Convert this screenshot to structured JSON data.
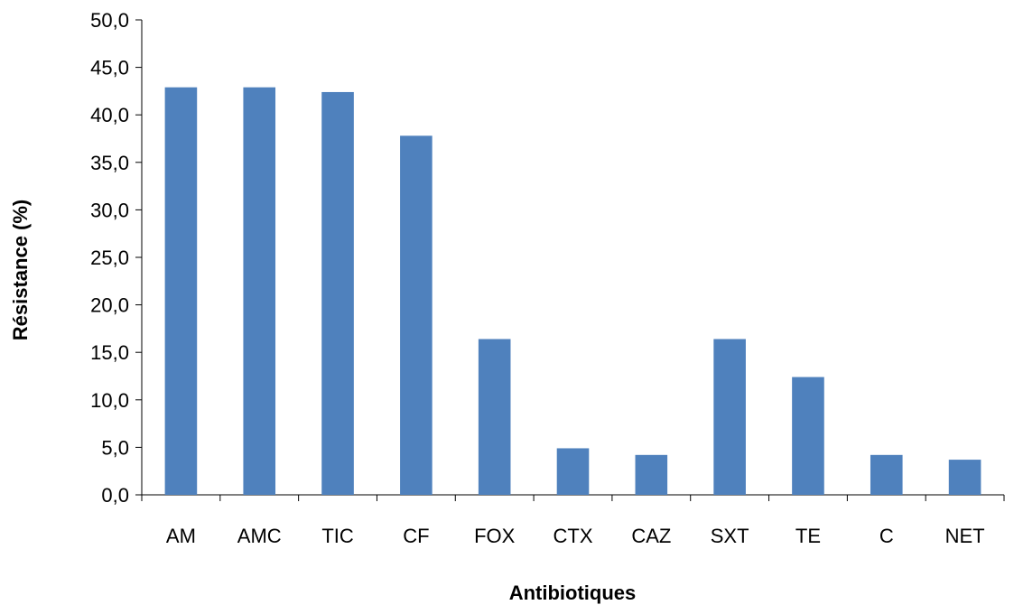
{
  "chart_data": {
    "type": "bar",
    "title": "",
    "xlabel": "Antibiotiques",
    "ylabel": "Résistance (%)",
    "categories": [
      "AM",
      "AMC",
      "TIC",
      "CF",
      "FOX",
      "CTX",
      "CAZ",
      "SXT",
      "TE",
      "C",
      "NET"
    ],
    "values": [
      42.9,
      42.9,
      42.4,
      37.8,
      16.4,
      4.9,
      4.2,
      16.4,
      12.4,
      4.2,
      3.7
    ],
    "ylim": [
      0,
      50
    ],
    "yticks": [
      "0,0",
      "5,0",
      "10,0",
      "15,0",
      "20,0",
      "25,0",
      "30,0",
      "35,0",
      "40,0",
      "45,0",
      "50,0"
    ],
    "grid": false,
    "legend": "none",
    "colors": {
      "bar": "#4f81bd",
      "axis": "#000000"
    }
  }
}
